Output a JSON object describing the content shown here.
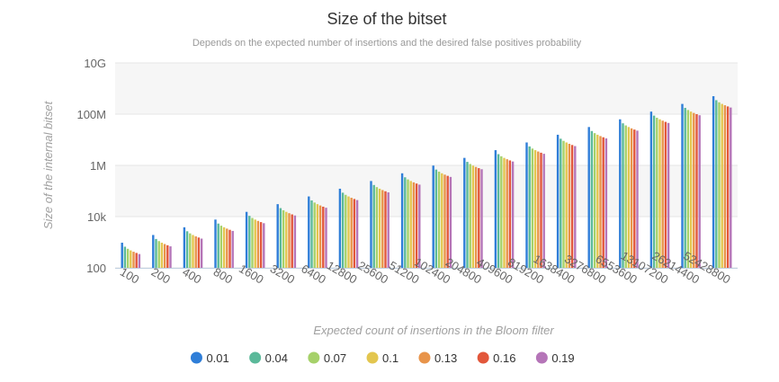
{
  "chart_data": {
    "type": "bar",
    "title": "Size of the bitset",
    "subtitle": "Depends on the expected number of insertions and the desired false positives probability",
    "xlabel": "Expected count of insertions in the Bloom filter",
    "ylabel": "Size of the internal bitset",
    "y_scale": "log",
    "ylim": [
      100,
      10000000000
    ],
    "y_ticks": [
      {
        "value": 100,
        "label": "100"
      },
      {
        "value": 10000,
        "label": "10k"
      },
      {
        "value": 1000000,
        "label": "1M"
      },
      {
        "value": 100000000,
        "label": "100M"
      },
      {
        "value": 10000000000,
        "label": "10G"
      }
    ],
    "grid": true,
    "legend_position": "bottom",
    "categories": [
      "100",
      "200",
      "400",
      "800",
      "1600",
      "3200",
      "6400",
      "12800",
      "25600",
      "51200",
      "102400",
      "204800",
      "409600",
      "819200",
      "1638400",
      "3276800",
      "6553600",
      "13107200",
      "26214400",
      "52428800"
    ],
    "series": [
      {
        "name": "0.01",
        "color": "#2f7ed8",
        "p": 0.01,
        "values": [
          959,
          1918,
          3835,
          7669,
          15337,
          30673,
          61346,
          122692,
          245384,
          490767,
          981534,
          1963067,
          3926133,
          7852265,
          15704530,
          31409060,
          62818120,
          125636239,
          251272477,
          502544954
        ]
      },
      {
        "name": "0.04",
        "color": "#5bb99a",
        "p": 0.04,
        "values": [
          670,
          1340,
          2680,
          5359,
          10718,
          21436,
          42872,
          85744,
          171487,
          342974,
          685948,
          1371895,
          2743790,
          5487580,
          10975160,
          21950319,
          43900638,
          87801276,
          175602551,
          351205102
        ]
      },
      {
        "name": "0.07",
        "color": "#a6d16a",
        "p": 0.07,
        "values": [
          554,
          1107,
          2214,
          4427,
          8854,
          17708,
          35416,
          70831,
          141661,
          283322,
          566644,
          1133288,
          2266575,
          4533150,
          9066300,
          18132599,
          36265198,
          72530396,
          145060791,
          290121582
        ]
      },
      {
        "name": "0.1",
        "color": "#e3c64f",
        "p": 0.1,
        "values": [
          480,
          959,
          1918,
          3835,
          7669,
          15338,
          30676,
          61352,
          122703,
          245406,
          490812,
          981624,
          1963247,
          3926494,
          7852988,
          15705976,
          31411951,
          62823903,
          125647805,
          251295610
        ]
      },
      {
        "name": "0.13",
        "color": "#e8944a",
        "p": 0.13,
        "values": [
          425,
          850,
          1700,
          3400,
          6800,
          13600,
          27200,
          54400,
          108800,
          217600,
          435200,
          870400,
          1740800,
          3481600,
          6963200,
          13926400,
          27852800,
          55705600,
          111411200,
          222822400
        ]
      },
      {
        "name": "0.16",
        "color": "#e2573b",
        "p": 0.16,
        "values": [
          382,
          763,
          1526,
          3052,
          6104,
          12207,
          24414,
          48828,
          97656,
          195312,
          390624,
          781248,
          1562496,
          3124992,
          6249984,
          12499968,
          24999936,
          49999872,
          99999744,
          199999488
        ]
      },
      {
        "name": "0.19",
        "color": "#b575b8",
        "p": 0.19,
        "values": [
          346,
          692,
          1384,
          2767,
          5534,
          11068,
          22136,
          44272,
          88544,
          177088,
          354176,
          708352,
          1416704,
          2833408,
          5666816,
          11333632,
          22667264,
          45334528,
          90669056,
          181338112
        ]
      }
    ]
  }
}
